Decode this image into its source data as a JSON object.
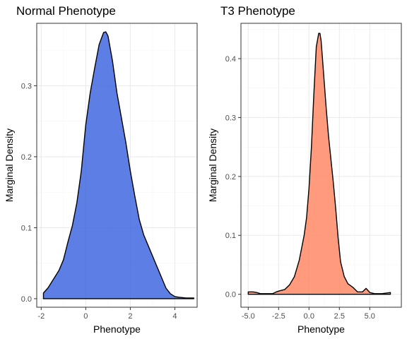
{
  "chart_data": [
    {
      "type": "area",
      "title": "Normal Phenotype",
      "xlabel": "Phenotype",
      "ylabel": "Marginal Density",
      "fill_color": "#4169E1",
      "xlim": [
        -2.2,
        5.0
      ],
      "ylim": [
        -0.012,
        0.388
      ],
      "x_ticks": [
        {
          "value": -2,
          "label": "-2"
        },
        {
          "value": 0,
          "label": "0"
        },
        {
          "value": 2,
          "label": "2"
        },
        {
          "value": 4,
          "label": "4"
        }
      ],
      "y_ticks": [
        {
          "value": 0.0,
          "label": "0.0"
        },
        {
          "value": 0.1,
          "label": "0.1"
        },
        {
          "value": 0.2,
          "label": "0.2"
        },
        {
          "value": 0.3,
          "label": "0.3"
        }
      ],
      "grid": true,
      "x": [
        -1.9,
        -1.7,
        -1.5,
        -1.2,
        -1.0,
        -0.8,
        -0.6,
        -0.4,
        -0.2,
        0.0,
        0.2,
        0.4,
        0.6,
        0.8,
        0.9,
        1.0,
        1.2,
        1.4,
        1.6,
        1.8,
        2.0,
        2.2,
        2.4,
        2.6,
        2.8,
        3.0,
        3.2,
        3.4,
        3.6,
        3.8,
        4.0,
        4.2,
        4.5,
        4.85
      ],
      "y": [
        0.008,
        0.015,
        0.025,
        0.04,
        0.055,
        0.08,
        0.103,
        0.135,
        0.18,
        0.245,
        0.29,
        0.325,
        0.358,
        0.375,
        0.376,
        0.37,
        0.335,
        0.29,
        0.255,
        0.22,
        0.18,
        0.145,
        0.112,
        0.09,
        0.075,
        0.06,
        0.045,
        0.03,
        0.015,
        0.007,
        0.003,
        0.002,
        0.001,
        0.001
      ]
    },
    {
      "type": "area",
      "title": "T3 Phenotype",
      "xlabel": "Phenotype",
      "ylabel": "Marginal Density",
      "fill_color": "#FF8866",
      "xlim": [
        -5.6,
        7.6
      ],
      "ylim": [
        -0.022,
        0.46
      ],
      "x_ticks": [
        {
          "value": -5,
          "label": "-5.0"
        },
        {
          "value": -2.5,
          "label": "-2.5"
        },
        {
          "value": 0,
          "label": "0.0"
        },
        {
          "value": 2.5,
          "label": "2.5"
        },
        {
          "value": 5,
          "label": "5.0"
        }
      ],
      "y_ticks": [
        {
          "value": 0.0,
          "label": "0.0"
        },
        {
          "value": 0.1,
          "label": "0.1"
        },
        {
          "value": 0.2,
          "label": "0.2"
        },
        {
          "value": 0.3,
          "label": "0.3"
        },
        {
          "value": 0.4,
          "label": "0.4"
        }
      ],
      "grid": true,
      "x": [
        -5.0,
        -4.6,
        -4.3,
        -4.0,
        -3.6,
        -3.0,
        -2.7,
        -2.4,
        -2.0,
        -1.6,
        -1.2,
        -0.8,
        -0.4,
        -0.2,
        0.0,
        0.2,
        0.4,
        0.6,
        0.8,
        0.9,
        1.0,
        1.2,
        1.4,
        1.6,
        1.8,
        2.0,
        2.2,
        2.4,
        2.6,
        2.9,
        3.2,
        3.6,
        4.0,
        4.4,
        4.7,
        5.0,
        5.4,
        6.0,
        6.7
      ],
      "y": [
        0.004,
        0.004,
        0.003,
        0.001,
        0.001,
        0.001,
        0.004,
        0.006,
        0.008,
        0.016,
        0.03,
        0.058,
        0.1,
        0.13,
        0.18,
        0.25,
        0.34,
        0.42,
        0.443,
        0.443,
        0.43,
        0.375,
        0.32,
        0.27,
        0.23,
        0.19,
        0.145,
        0.095,
        0.055,
        0.03,
        0.018,
        0.012,
        0.004,
        0.004,
        0.01,
        0.003,
        0.001,
        0.001,
        0.003
      ]
    }
  ]
}
